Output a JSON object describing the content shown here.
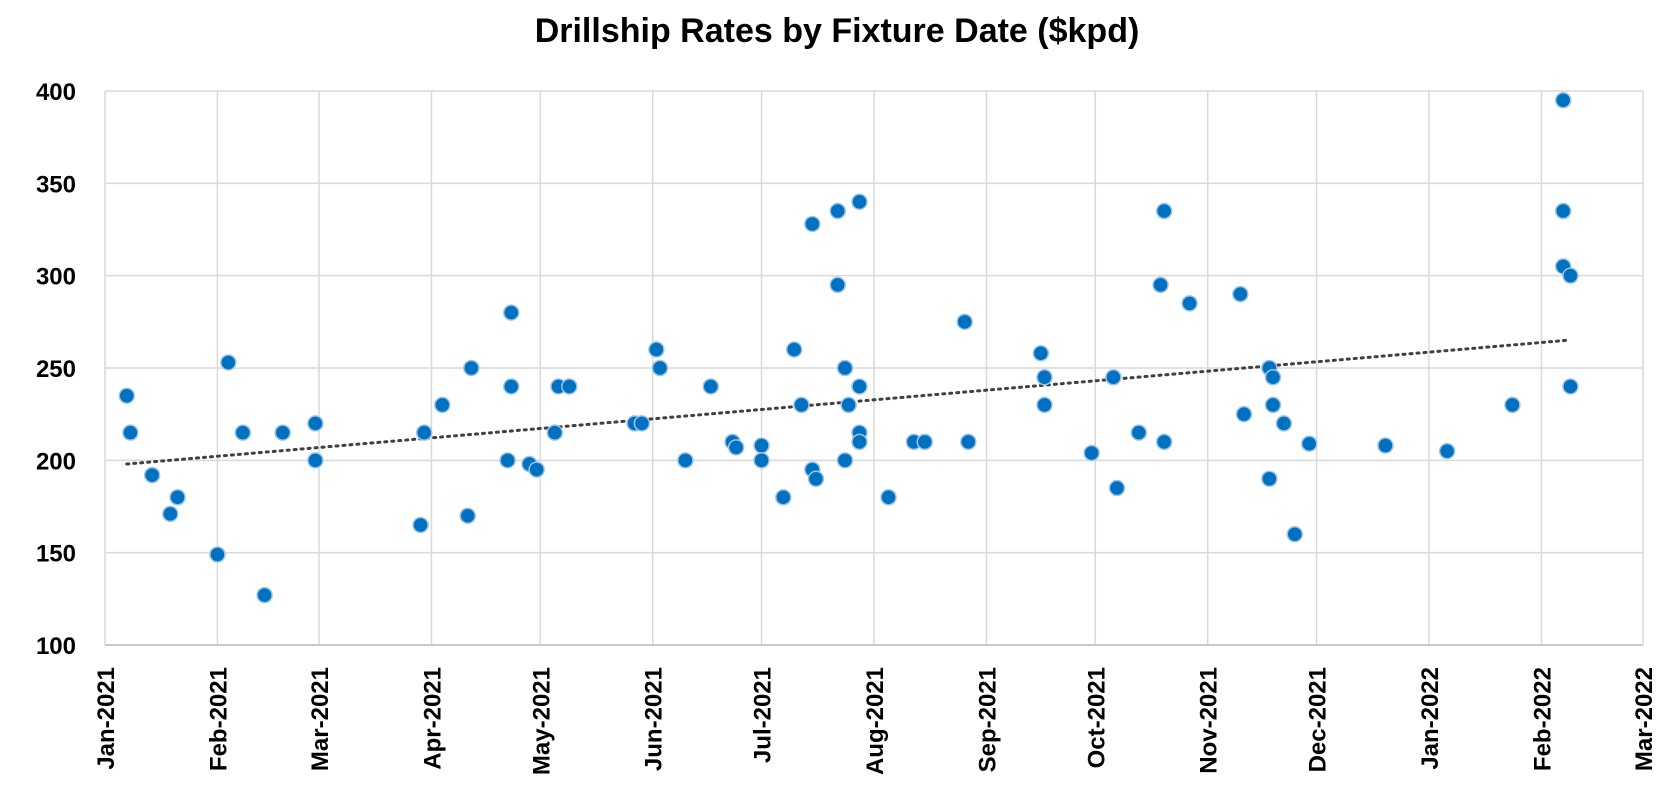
{
  "chart_data": {
    "type": "scatter",
    "title": "Drillship Rates by Fixture Date ($kpd)",
    "xlabel": "",
    "ylabel": "",
    "x_type": "date",
    "xlim": [
      "2021-01-01",
      "2022-03-01"
    ],
    "ylim": [
      100,
      400
    ],
    "y_ticks": [
      100,
      150,
      200,
      250,
      300,
      350,
      400
    ],
    "x_tick_labels": [
      "Jan-2021",
      "Feb-2021",
      "Mar-2021",
      "Apr-2021",
      "May-2021",
      "Jun-2021",
      "Jul-2021",
      "Aug-2021",
      "Sep-2021",
      "Oct-2021",
      "Nov-2021",
      "Dec-2021",
      "Jan-2022",
      "Feb-2022",
      "Mar-2022"
    ],
    "x_tick_dates": [
      "2021-01-01",
      "2021-02-01",
      "2021-03-01",
      "2021-04-01",
      "2021-05-01",
      "2021-06-01",
      "2021-07-01",
      "2021-08-01",
      "2021-09-01",
      "2021-10-01",
      "2021-11-01",
      "2021-12-01",
      "2022-01-01",
      "2022-02-01",
      "2022-03-01"
    ],
    "grid": true,
    "marker_color": "#0070c0",
    "trendline": {
      "type": "linear",
      "style": "dotted",
      "color": "#404040",
      "from": [
        "2021-01-07",
        198
      ],
      "to": [
        "2022-02-08",
        265
      ]
    },
    "series": [
      {
        "points": [
          [
            "2021-01-07",
            235
          ],
          [
            "2021-01-08",
            215
          ],
          [
            "2021-01-14",
            192
          ],
          [
            "2021-01-19",
            171
          ],
          [
            "2021-01-21",
            180
          ],
          [
            "2021-02-01",
            149
          ],
          [
            "2021-02-04",
            253
          ],
          [
            "2021-02-08",
            215
          ],
          [
            "2021-02-14",
            127
          ],
          [
            "2021-02-19",
            215
          ],
          [
            "2021-02-28",
            220
          ],
          [
            "2021-02-28",
            200
          ],
          [
            "2021-03-29",
            165
          ],
          [
            "2021-03-30",
            215
          ],
          [
            "2021-04-04",
            230
          ],
          [
            "2021-04-11",
            170
          ],
          [
            "2021-04-12",
            250
          ],
          [
            "2021-04-22",
            200
          ],
          [
            "2021-04-23",
            240
          ],
          [
            "2021-04-23",
            280
          ],
          [
            "2021-04-28",
            198
          ],
          [
            "2021-04-30",
            195
          ],
          [
            "2021-05-05",
            215
          ],
          [
            "2021-05-06",
            240
          ],
          [
            "2021-05-09",
            240
          ],
          [
            "2021-05-27",
            220
          ],
          [
            "2021-05-29",
            220
          ],
          [
            "2021-06-02",
            260
          ],
          [
            "2021-06-03",
            250
          ],
          [
            "2021-06-10",
            200
          ],
          [
            "2021-06-17",
            240
          ],
          [
            "2021-06-23",
            210
          ],
          [
            "2021-06-24",
            207
          ],
          [
            "2021-07-01",
            208
          ],
          [
            "2021-07-01",
            200
          ],
          [
            "2021-07-07",
            180
          ],
          [
            "2021-07-10",
            260
          ],
          [
            "2021-07-12",
            230
          ],
          [
            "2021-07-15",
            328
          ],
          [
            "2021-07-15",
            195
          ],
          [
            "2021-07-16",
            190
          ],
          [
            "2021-07-22",
            335
          ],
          [
            "2021-07-22",
            295
          ],
          [
            "2021-07-24",
            250
          ],
          [
            "2021-07-24",
            200
          ],
          [
            "2021-07-25",
            230
          ],
          [
            "2021-07-28",
            340
          ],
          [
            "2021-07-28",
            240
          ],
          [
            "2021-07-28",
            215
          ],
          [
            "2021-07-28",
            210
          ],
          [
            "2021-08-05",
            180
          ],
          [
            "2021-08-12",
            210
          ],
          [
            "2021-08-15",
            210
          ],
          [
            "2021-08-26",
            275
          ],
          [
            "2021-08-27",
            210
          ],
          [
            "2021-09-16",
            258
          ],
          [
            "2021-09-17",
            245
          ],
          [
            "2021-09-17",
            230
          ],
          [
            "2021-09-30",
            204
          ],
          [
            "2021-10-06",
            245
          ],
          [
            "2021-10-07",
            185
          ],
          [
            "2021-10-13",
            215
          ],
          [
            "2021-10-19",
            295
          ],
          [
            "2021-10-20",
            335
          ],
          [
            "2021-10-20",
            210
          ],
          [
            "2021-10-27",
            285
          ],
          [
            "2021-11-10",
            290
          ],
          [
            "2021-11-11",
            225
          ],
          [
            "2021-11-18",
            250
          ],
          [
            "2021-11-18",
            190
          ],
          [
            "2021-11-19",
            245
          ],
          [
            "2021-11-19",
            230
          ],
          [
            "2021-11-22",
            220
          ],
          [
            "2021-11-25",
            160
          ],
          [
            "2021-11-29",
            209
          ],
          [
            "2021-12-20",
            208
          ],
          [
            "2022-01-06",
            205
          ],
          [
            "2022-01-24",
            230
          ],
          [
            "2022-02-07",
            395
          ],
          [
            "2022-02-07",
            335
          ],
          [
            "2022-02-07",
            305
          ],
          [
            "2022-02-09",
            300
          ],
          [
            "2022-02-09",
            240
          ]
        ]
      }
    ]
  }
}
